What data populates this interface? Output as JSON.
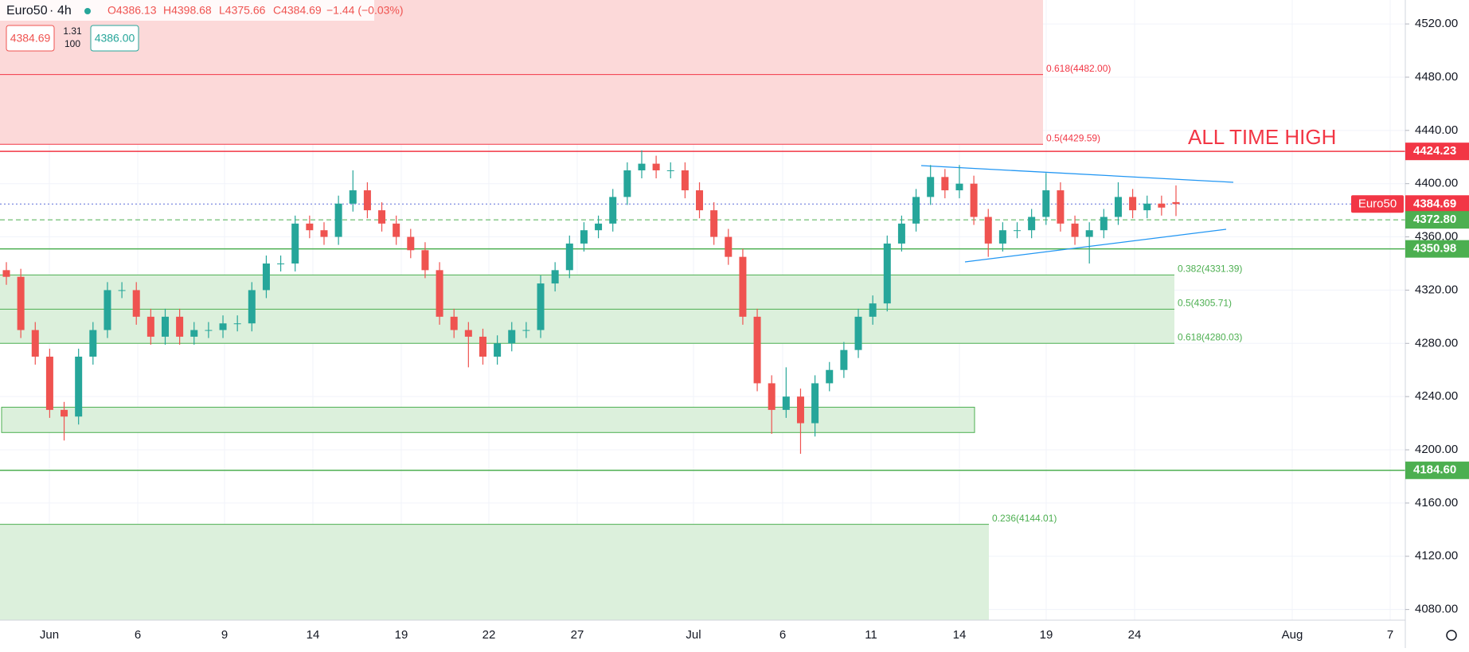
{
  "header": {
    "symbol": "Euro50",
    "interval": "4h",
    "open": "O4386.13",
    "high": "H4398.68",
    "low": "L4375.66",
    "close": "C4384.69",
    "change": "−1.44 (−0.03%)"
  },
  "trade": {
    "sell": "4384.69",
    "spread": "1.31",
    "qty": "100",
    "buy": "4386.00"
  },
  "chart_data": {
    "type": "candlestick",
    "x_labels": [
      "Jun",
      "6",
      "9",
      "14",
      "19",
      "22",
      "27",
      "Jul",
      "6",
      "11",
      "14",
      "19",
      "24",
      "Aug",
      "7"
    ],
    "open": [
      4335,
      4330,
      4290,
      4270,
      4230,
      4225,
      4270,
      4290,
      4320,
      4320,
      4300,
      4285,
      4300,
      4285,
      4290,
      4290,
      4295,
      4295,
      4320,
      4340,
      4340,
      4370,
      4365,
      4360,
      4385,
      4395,
      4380,
      4370,
      4360,
      4350,
      4335,
      4300,
      4290,
      4285,
      4270,
      4280,
      4290,
      4290,
      4325,
      4335,
      4355,
      4365,
      4370,
      4390,
      4410,
      4415,
      4410,
      4410,
      4395,
      4380,
      4360,
      4345,
      4300,
      4250,
      4230,
      4240,
      4220,
      4250,
      4260,
      4275,
      4300,
      4310,
      4355,
      4370,
      4390,
      4405,
      4395,
      4400,
      4375,
      4355,
      4365,
      4365,
      4375,
      4395,
      4370,
      4360,
      4365,
      4375,
      4390,
      4380,
      4385,
      4386.13
    ],
    "high": [
      4341,
      4336,
      4296,
      4276,
      4236,
      4276,
      4296,
      4326,
      4326,
      4326,
      4306,
      4306,
      4306,
      4296,
      4296,
      4301,
      4301,
      4326,
      4346,
      4346,
      4376,
      4376,
      4371,
      4391,
      4410,
      4401,
      4386,
      4376,
      4366,
      4356,
      4341,
      4306,
      4296,
      4291,
      4286,
      4296,
      4296,
      4331,
      4341,
      4361,
      4371,
      4376,
      4396,
      4416,
      4425,
      4421,
      4416,
      4416,
      4401,
      4386,
      4366,
      4351,
      4306,
      4256,
      4262,
      4246,
      4256,
      4266,
      4281,
      4306,
      4316,
      4361,
      4376,
      4396,
      4414,
      4411,
      4414,
      4406,
      4381,
      4371,
      4371,
      4381,
      4408,
      4401,
      4376,
      4371,
      4381,
      4401,
      4396,
      4391,
      4391,
      4398.68
    ],
    "low": [
      4324,
      4284,
      4264,
      4224,
      4207,
      4219,
      4264,
      4284,
      4314,
      4294,
      4279,
      4279,
      4279,
      4279,
      4284,
      4284,
      4289,
      4289,
      4314,
      4334,
      4334,
      4359,
      4354,
      4354,
      4379,
      4374,
      4364,
      4354,
      4344,
      4329,
      4294,
      4284,
      4262,
      4264,
      4264,
      4274,
      4284,
      4284,
      4319,
      4329,
      4349,
      4359,
      4364,
      4384,
      4404,
      4404,
      4404,
      4389,
      4374,
      4354,
      4339,
      4294,
      4244,
      4212,
      4224,
      4197,
      4210,
      4244,
      4254,
      4269,
      4294,
      4304,
      4349,
      4364,
      4384,
      4389,
      4389,
      4369,
      4345,
      4349,
      4359,
      4359,
      4369,
      4364,
      4354,
      4340,
      4359,
      4369,
      4374,
      4374,
      4376,
      4375.66
    ],
    "close": [
      4330,
      4290,
      4270,
      4230,
      4225,
      4270,
      4290,
      4320,
      4320,
      4300,
      4285,
      4300,
      4285,
      4290,
      4290,
      4295,
      4295,
      4320,
      4340,
      4340,
      4370,
      4365,
      4360,
      4385,
      4395,
      4380,
      4370,
      4360,
      4350,
      4335,
      4300,
      4290,
      4285,
      4270,
      4280,
      4290,
      4290,
      4325,
      4335,
      4355,
      4365,
      4370,
      4390,
      4410,
      4415,
      4410,
      4410,
      4395,
      4380,
      4360,
      4345,
      4300,
      4250,
      4230,
      4240,
      4220,
      4250,
      4260,
      4275,
      4300,
      4310,
      4355,
      4370,
      4390,
      4405,
      4395,
      4400,
      4375,
      4355,
      4365,
      4365,
      4375,
      4395,
      4370,
      4360,
      4365,
      4375,
      4390,
      4380,
      4385,
      4382,
      4384.69
    ],
    "up_color": "#26a69a",
    "down_color": "#ef5350",
    "ylim": [
      4072,
      4538
    ],
    "yticks": [
      {
        "value": 4080,
        "label": "4080.00"
      },
      {
        "value": 4120,
        "label": "4120.00"
      },
      {
        "value": 4160,
        "label": "4160.00"
      },
      {
        "value": 4200,
        "label": "4200.00"
      },
      {
        "value": 4240,
        "label": "4240.00"
      },
      {
        "value": 4280,
        "label": "4280.00"
      },
      {
        "value": 4320,
        "label": "4320.00"
      },
      {
        "value": 4360,
        "label": "4360.00"
      },
      {
        "value": 4400,
        "label": "4400.00"
      },
      {
        "value": 4440,
        "label": "4440.00"
      },
      {
        "value": 4480,
        "label": "4480.00"
      },
      {
        "value": 4520,
        "label": "4520.00"
      }
    ],
    "grid": true,
    "levels": [
      {
        "value": 4482,
        "label": "0.618(4482.00)",
        "color": "#f23645"
      },
      {
        "value": 4429.59,
        "label": "0.5(4429.59)",
        "color": "#f23645"
      },
      {
        "value": 4331.39,
        "label": "0.382(4331.39)",
        "color": "#4caf50"
      },
      {
        "value": 4305.71,
        "label": "0.5(4305.71)",
        "color": "#4caf50"
      },
      {
        "value": 4280.03,
        "label": "0.618(4280.03)",
        "color": "#4caf50"
      },
      {
        "value": 4144.01,
        "label": "0.236(4144.01)",
        "color": "#4caf50"
      }
    ],
    "box": {
      "top": 4232,
      "bottom": 4213
    },
    "price_lines": [
      {
        "value": 4424.23,
        "label": "4424.23",
        "color": "#f23645",
        "style": "solid"
      },
      {
        "value": 4384.69,
        "label": "4384.69",
        "name": "Euro50",
        "color": "#f23645",
        "style": "dotted"
      },
      {
        "value": 4372.8,
        "label": "4372.80",
        "color": "#4caf50",
        "style": "dashed"
      },
      {
        "value": 4350.98,
        "label": "4350.98",
        "color": "#4caf50",
        "style": "solid"
      },
      {
        "value": 4184.6,
        "label": "4184.60",
        "color": "#4caf50",
        "style": "solid"
      }
    ],
    "annotation": "ALL TIME HIGH"
  }
}
